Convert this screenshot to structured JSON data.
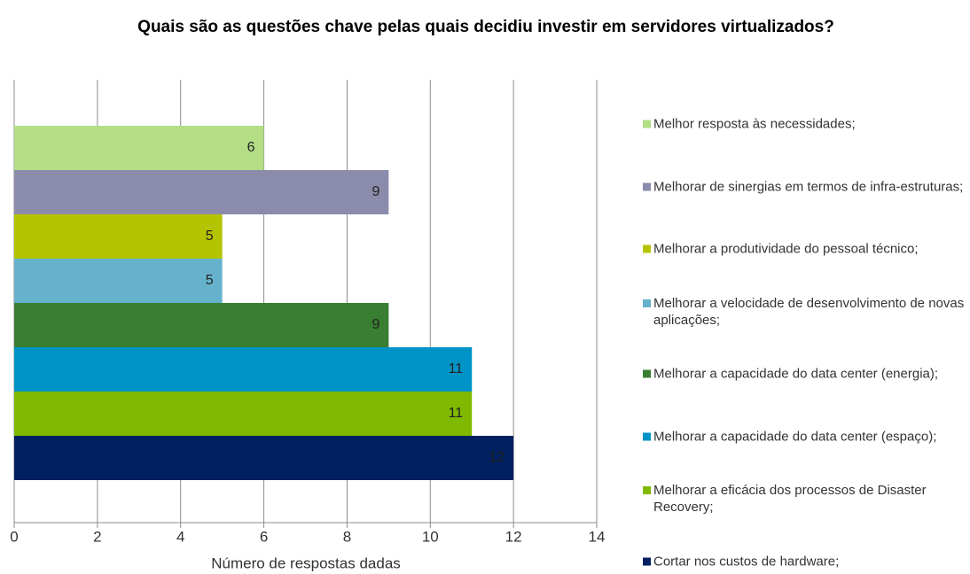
{
  "chart_data": {
    "type": "bar",
    "orientation": "horizontal",
    "title": "Quais são as questões chave pelas quais decidiu investir em servidores virtualizados?",
    "x_label": "Número de respostas dadas",
    "xlim": [
      0,
      14
    ],
    "xticks": [
      0,
      2,
      4,
      6,
      8,
      10,
      12,
      14
    ],
    "grid": true,
    "legend": "right",
    "series": [
      {
        "name": "Melhor resposta às necessidades;",
        "color": "#b3de86",
        "values": [
          6
        ]
      },
      {
        "name": "Melhorar de sinergias em termos de infra-estruturas;",
        "color": "#8b8bab",
        "values": [
          9
        ]
      },
      {
        "name": "Melhorar a produtividade do pessoal técnico;",
        "color": "#b5c400",
        "values": [
          5
        ]
      },
      {
        "name": "Melhorar a velocidade de desenvolvimento de novas aplicações;",
        "color": "#66b2cc",
        "values": [
          5
        ]
      },
      {
        "name": "Melhorar a capacidade do data center (energia);",
        "color": "#3a7f31",
        "values": [
          9
        ]
      },
      {
        "name": "Melhorar a capacidade do data center (espaço);",
        "color": "#0093c7",
        "values": [
          11
        ]
      },
      {
        "name": "Melhorar a eficácia dos processos de Disaster Recovery;",
        "color": "#7fba00",
        "values": [
          11
        ]
      },
      {
        "name": "Cortar nos custos de hardware;",
        "color": "#00205f",
        "values": [
          12
        ]
      }
    ]
  }
}
